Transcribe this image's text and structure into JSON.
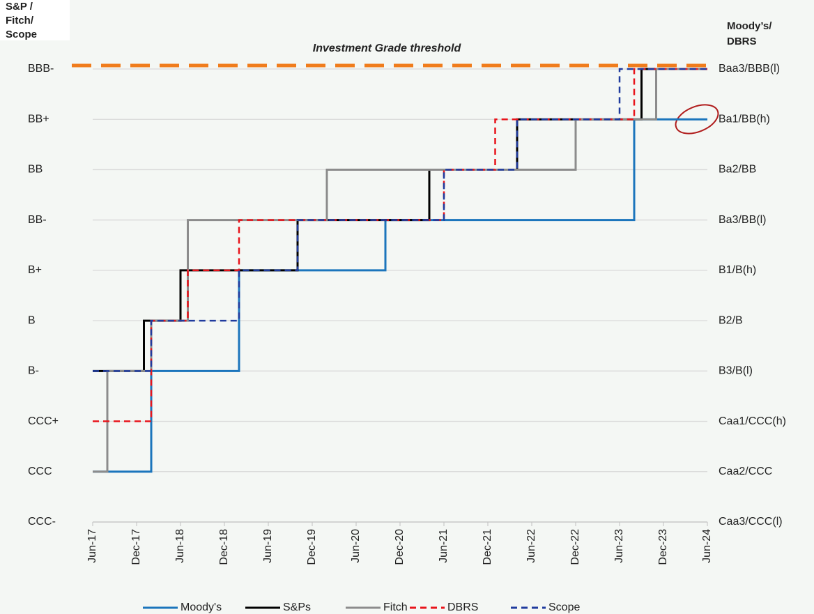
{
  "chart_data": {
    "type": "step",
    "y_label": [
      "S&P /",
      "Fitch/",
      "Scope"
    ],
    "y2_label": [
      "Moody’s/",
      "DBRS"
    ],
    "threshold": {
      "text": "Investment Grade threshold",
      "value": 9,
      "color": "#f07c1c"
    },
    "xlim": [
      "2017-06",
      "2024-06"
    ],
    "xticks": [
      {
        "value": "2017-06",
        "label": "Jun-17"
      },
      {
        "value": "2017-12",
        "label": "Dec-17"
      },
      {
        "value": "2018-06",
        "label": "Jun-18"
      },
      {
        "value": "2018-12",
        "label": "Dec-18"
      },
      {
        "value": "2019-06",
        "label": "Jun-19"
      },
      {
        "value": "2019-12",
        "label": "Dec-19"
      },
      {
        "value": "2020-06",
        "label": "Jun-20"
      },
      {
        "value": "2020-12",
        "label": "Dec-20"
      },
      {
        "value": "2021-06",
        "label": "Jun-21"
      },
      {
        "value": "2021-12",
        "label": "Dec-21"
      },
      {
        "value": "2022-06",
        "label": "Jun-22"
      },
      {
        "value": "2022-12",
        "label": "Dec-22"
      },
      {
        "value": "2023-06",
        "label": "Jun-23"
      },
      {
        "value": "2023-12",
        "label": "Dec-23"
      },
      {
        "value": "2024-06",
        "label": "Jun-24"
      }
    ],
    "ylim": [
      0,
      9
    ],
    "yticks": [
      {
        "value": 9,
        "label": "BBB-"
      },
      {
        "value": 8,
        "label": "BB+"
      },
      {
        "value": 7,
        "label": "BB"
      },
      {
        "value": 6,
        "label": "BB-"
      },
      {
        "value": 5,
        "label": "B+"
      },
      {
        "value": 4,
        "label": "B"
      },
      {
        "value": 3,
        "label": "B-"
      },
      {
        "value": 2,
        "label": "CCC+"
      },
      {
        "value": 1,
        "label": "CCC"
      },
      {
        "value": 0,
        "label": "CCC-"
      }
    ],
    "y2ticks": [
      {
        "value": 9,
        "label": "Baa3/BBB(l)"
      },
      {
        "value": 8,
        "label": "Ba1/BB(h)"
      },
      {
        "value": 7,
        "label": "Ba2/BB"
      },
      {
        "value": 6,
        "label": "Ba3/BB(l)"
      },
      {
        "value": 5,
        "label": "B1/B(h)"
      },
      {
        "value": 4,
        "label": "B2/B"
      },
      {
        "value": 3,
        "label": "B3/B(l)"
      },
      {
        "value": 2,
        "label": "Caa1/CCC(h)"
      },
      {
        "value": 1,
        "label": "Caa2/CCC"
      },
      {
        "value": 0,
        "label": "Caa3/CCC(l)"
      }
    ],
    "grid": true,
    "series": [
      {
        "name": "Moody's",
        "color": "#1b75bc",
        "dashed": false,
        "x": [
          "2017-06",
          "2018-02",
          "2019-02",
          "2020-10",
          "2023-08",
          "2024-06"
        ],
        "values": [
          1,
          3,
          5,
          6,
          8,
          8
        ]
      },
      {
        "name": "S&Ps",
        "color": "#000000",
        "dashed": false,
        "x": [
          "2017-06",
          "2018-01",
          "2018-06",
          "2019-10",
          "2021-04",
          "2022-04",
          "2023-09",
          "2024-06"
        ],
        "values": [
          3,
          4,
          5,
          6,
          7,
          8,
          9,
          9
        ]
      },
      {
        "name": "Fitch",
        "color": "#8c8c8c",
        "dashed": false,
        "x": [
          "2017-06",
          "2017-08",
          "2018-02",
          "2018-07",
          "2020-02",
          "2022-12",
          "2023-11",
          "2024-06"
        ],
        "values": [
          1,
          3,
          4,
          6,
          7,
          8,
          9,
          9
        ]
      },
      {
        "name": "DBRS",
        "color": "#e8141b",
        "dashed": true,
        "x": [
          "2017-06",
          "2018-02",
          "2018-07",
          "2019-02",
          "2021-06",
          "2022-01",
          "2023-08",
          "2024-06"
        ],
        "values": [
          2,
          4,
          5,
          6,
          7,
          8,
          9,
          9
        ]
      },
      {
        "name": "Scope",
        "color": "#1f3b9e",
        "dashed": true,
        "x": [
          "2017-06",
          "2018-02",
          "2019-02",
          "2019-10",
          "2021-06",
          "2022-04",
          "2023-06",
          "2024-06"
        ],
        "values": [
          3,
          4,
          5,
          6,
          7,
          8,
          9,
          9
        ]
      }
    ]
  }
}
